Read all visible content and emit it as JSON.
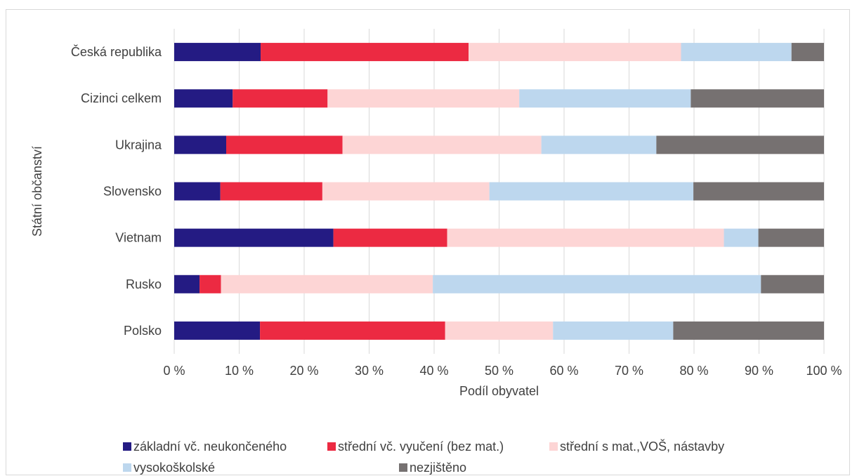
{
  "chart_data": {
    "type": "bar",
    "orientation": "horizontal",
    "stacked": "percent",
    "title": "",
    "xlabel": "Podíl obyvatel",
    "ylabel": "Státní občanství",
    "xlim": [
      0,
      100
    ],
    "xticks": [
      "0 %",
      "10 %",
      "20 %",
      "30 %",
      "40 %",
      "50 %",
      "60 %",
      "70 %",
      "80 %",
      "90 %",
      "100 %"
    ],
    "grid": true,
    "legend_position": "bottom",
    "categories": [
      "Česká republika",
      "Cizinci celkem",
      "Ukrajina",
      "Slovensko",
      "Vietnam",
      "Rusko",
      "Polsko"
    ],
    "series": [
      {
        "name": "základní vč. neukončeného",
        "color": "#241b83",
        "values": [
          13.3,
          9.0,
          8.0,
          7.1,
          24.5,
          3.9,
          13.2
        ]
      },
      {
        "name": "střední vč. vyučení (bez mat.)",
        "color": "#ec2a42",
        "values": [
          32.0,
          14.6,
          17.9,
          15.7,
          17.5,
          3.3,
          28.5
        ]
      },
      {
        "name": "střední s mat.,VOŠ, nástavby",
        "color": "#fdd5d5",
        "values": [
          32.7,
          29.5,
          30.6,
          25.7,
          42.6,
          32.6,
          16.6
        ]
      },
      {
        "name": "vysokoškolské",
        "color": "#bdd7ee",
        "values": [
          17.0,
          26.4,
          17.7,
          31.4,
          5.3,
          50.5,
          18.5
        ]
      },
      {
        "name": "nezjištěno",
        "color": "#767171",
        "values": [
          5.0,
          20.5,
          25.8,
          20.1,
          10.1,
          9.7,
          23.2
        ]
      }
    ]
  }
}
